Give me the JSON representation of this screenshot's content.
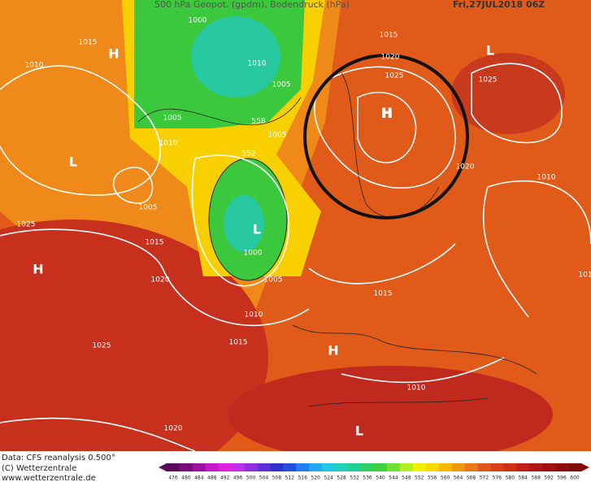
{
  "header": {
    "title": "500 hPa Geopot. (gpdm), Bodendruck (hPa)",
    "date": "Fri,27JUL2018 06Z"
  },
  "map_labels": [
    1000,
    1015,
    "H",
    1010,
    1010,
    1005,
    1005,
    558,
    1005,
    1010,
    552,
    "L",
    1005,
    "L",
    1000,
    1015,
    1025,
    "H",
    1020,
    1005,
    1010,
    1015,
    1025,
    1020,
    1015,
    1020,
    1025,
    "H",
    "L",
    1025,
    1020,
    1010,
    1015,
    "H",
    1010,
    "L",
    "101"
  ],
  "footer": {
    "source": "Data: CFS reanalysis 0.500°",
    "copyright": "(C) Wetterzentrale",
    "url": "www.wetterzentrale.de"
  },
  "color_scale": {
    "values": [
      476,
      480,
      484,
      488,
      492,
      496,
      500,
      504,
      508,
      512,
      516,
      520,
      524,
      528,
      532,
      536,
      540,
      544,
      548,
      552,
      556,
      560,
      564,
      568,
      572,
      576,
      580,
      584,
      588,
      592,
      596,
      600
    ],
    "colors": [
      "#5a0a5a",
      "#7a0a7a",
      "#a010a0",
      "#c818c8",
      "#e020e0",
      "#c030e8",
      "#9030e0",
      "#6030d8",
      "#3030d0",
      "#2050e0",
      "#2080f0",
      "#20a8f0",
      "#20c8e0",
      "#20d0b8",
      "#20d090",
      "#30d060",
      "#40d040",
      "#70e030",
      "#b0f020",
      "#f0f000",
      "#f8d800",
      "#f8b800",
      "#f09810",
      "#e87818",
      "#e05818",
      "#d84018",
      "#d03018",
      "#c02018",
      "#b01818",
      "#a01010",
      "#900c0c",
      "#800808"
    ]
  }
}
